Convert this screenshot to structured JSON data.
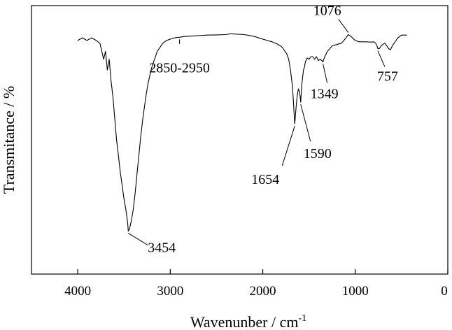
{
  "chart_data": {
    "type": "line",
    "title": "",
    "xlabel": "Wavenunber / cm",
    "xlabel_sup": "-1",
    "ylabel": "Transmitance / %",
    "xlim": [
      4500,
      0
    ],
    "ylim": [
      0,
      100
    ],
    "x_reversed": true,
    "y_ticks_shown": false,
    "grid": false,
    "x_ticks": [
      {
        "value": 4000,
        "label": "4000"
      },
      {
        "value": 3000,
        "label": "3000"
      },
      {
        "value": 2000,
        "label": "2000"
      },
      {
        "value": 1000,
        "label": "1000"
      },
      {
        "value": 0,
        "label": "0"
      }
    ],
    "series": [
      {
        "x": [
          4000,
          3950,
          3900,
          3850,
          3800,
          3760,
          3740,
          3720,
          3700,
          3680,
          3660,
          3640,
          3620,
          3600,
          3580,
          3560,
          3540,
          3520,
          3500,
          3480,
          3460,
          3454,
          3440,
          3420,
          3400,
          3380,
          3360,
          3340,
          3320,
          3300,
          3280,
          3260,
          3240,
          3220,
          3200,
          3180,
          3160,
          3140,
          3120,
          3100,
          3080,
          3060,
          3040,
          3000,
          2950,
          2900,
          2850,
          2800,
          2700,
          2600,
          2500,
          2400,
          2350,
          2300,
          2200,
          2100,
          2000,
          1950,
          1900,
          1850,
          1800,
          1780,
          1760,
          1740,
          1720,
          1700,
          1690,
          1680,
          1670,
          1660,
          1654,
          1645,
          1635,
          1625,
          1615,
          1605,
          1595,
          1590,
          1580,
          1570,
          1560,
          1550,
          1540,
          1520,
          1500,
          1480,
          1460,
          1440,
          1420,
          1400,
          1380,
          1360,
          1349,
          1330,
          1300,
          1250,
          1200,
          1150,
          1100,
          1076,
          1050,
          1000,
          960,
          920,
          880,
          840,
          800,
          780,
          760,
          757,
          740,
          720,
          700,
          680,
          660,
          640,
          620,
          600,
          580,
          560,
          540,
          520,
          500,
          470,
          440
        ],
        "y": [
          87,
          88,
          87,
          88,
          87,
          86,
          83,
          80,
          83,
          76,
          80,
          72,
          66,
          58,
          50,
          44,
          38,
          33,
          28,
          24,
          19,
          16,
          17,
          20,
          24,
          30,
          37,
          44,
          51,
          57,
          62,
          67,
          71,
          74,
          77,
          79,
          81,
          83,
          84,
          85,
          86,
          86.5,
          87,
          87.5,
          88,
          88.2,
          88.5,
          88.6,
          88.8,
          89,
          89.1,
          89.2,
          89.5,
          89.4,
          89.2,
          88.6,
          87.5,
          87,
          86.5,
          85.8,
          84.8,
          84,
          83,
          82,
          80,
          76,
          73,
          70,
          65,
          59,
          56,
          60,
          64,
          67,
          69,
          68,
          66,
          64,
          70,
          73,
          76,
          77,
          79,
          80.5,
          80,
          81,
          81,
          80,
          81,
          79.5,
          80,
          79.5,
          79,
          81,
          83,
          85,
          85.5,
          86,
          88,
          89.2,
          88.6,
          87,
          86.5,
          86.5,
          86.5,
          86.4,
          86.5,
          86,
          84.5,
          84,
          84,
          85,
          85.6,
          86,
          85,
          84,
          83.5,
          85,
          86,
          87,
          88,
          88.5,
          89,
          89,
          89
        ]
      }
    ],
    "annotations": [
      {
        "label": "3454",
        "x": 3454,
        "y": 16
      },
      {
        "label": "2850-2950",
        "x": 2900,
        "y": 88.2
      },
      {
        "label": "1654",
        "x": 1654,
        "y": 56
      },
      {
        "label": "1590",
        "x": 1590,
        "y": 64
      },
      {
        "label": "1349",
        "x": 1349,
        "y": 79
      },
      {
        "label": "1076",
        "x": 1076,
        "y": 89.2
      },
      {
        "label": "757",
        "x": 757,
        "y": 84
      }
    ]
  }
}
